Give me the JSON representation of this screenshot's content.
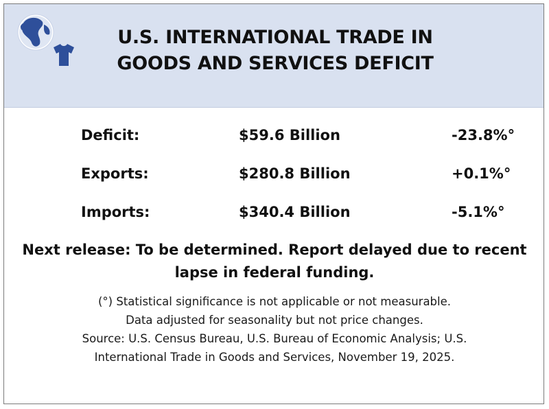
{
  "header": {
    "title_line1": "U.S. INTERNATIONAL TRADE IN",
    "title_line2": "GOODS AND SERVICES DEFICIT",
    "logo_icons": [
      "globe-icon",
      "shirt-icon"
    ],
    "background_color": "#d9e1f0",
    "icon_color": "#2e4f9a"
  },
  "stats": [
    {
      "label": "Deficit:",
      "value": "$59.6 Billion",
      "change": "-23.8%°"
    },
    {
      "label": "Exports:",
      "value": "$280.8 Billion",
      "change": "+0.1%°"
    },
    {
      "label": "Imports:",
      "value": "$340.4 Billion",
      "change": "-5.1%°"
    }
  ],
  "release": {
    "line1": "Next release: To be determined. Report delayed due to recent",
    "line2": "lapse in federal funding."
  },
  "notes": {
    "line1": "(°) Statistical significance is not applicable or not measurable.",
    "line2": "Data adjusted for seasonality but not price changes.",
    "line3": "Source: U.S. Census Bureau, U.S. Bureau of Economic Analysis; U.S.",
    "line4": "International Trade in Goods and Services, November 19, 2025."
  }
}
